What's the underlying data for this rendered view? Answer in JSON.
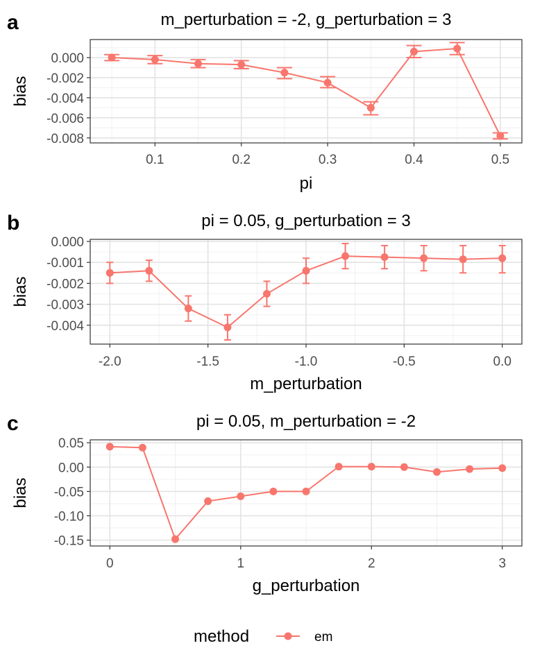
{
  "legend": {
    "title": "method",
    "entries": [
      {
        "name": "em",
        "color": "#f8766d"
      }
    ]
  },
  "chart_data": [
    {
      "type": "line",
      "panel_letter": "a",
      "title": "m_perturbation = -2, g_perturbation = 3",
      "xlabel": "pi",
      "ylabel": "bias",
      "xlim": [
        0.025,
        0.525
      ],
      "ylim": [
        -0.0085,
        0.0018
      ],
      "xticks": [
        0.1,
        0.2,
        0.3,
        0.4,
        0.5
      ],
      "xtick_labels": [
        "0.1",
        "0.2",
        "0.3",
        "0.4",
        "0.5"
      ],
      "yticks": [
        0.0,
        -0.002,
        -0.004,
        -0.006,
        -0.008
      ],
      "ytick_labels": [
        "0.000",
        "-0.002",
        "-0.004",
        "-0.006",
        "-0.008"
      ],
      "grid": true,
      "error_bars": true,
      "series": [
        {
          "name": "em",
          "color": "#f8766d",
          "x": [
            0.05,
            0.1,
            0.15,
            0.2,
            0.25,
            0.3,
            0.35,
            0.4,
            0.45,
            0.5
          ],
          "y": [
            0.0,
            -0.0002,
            -0.0006,
            -0.0007,
            -0.0015,
            -0.0025,
            -0.005,
            0.0006,
            0.0009,
            -0.0078
          ],
          "lower": [
            -0.0003,
            -0.0006,
            -0.001,
            -0.0011,
            -0.0021,
            -0.003,
            -0.0057,
            0.0,
            0.0003,
            -0.0081
          ],
          "upper": [
            0.0003,
            0.0002,
            -0.0002,
            -0.0003,
            -0.001,
            -0.0019,
            -0.0044,
            0.0012,
            0.0015,
            -0.0075
          ]
        }
      ]
    },
    {
      "type": "line",
      "panel_letter": "b",
      "title": "pi = 0.05, g_perturbation = 3",
      "xlabel": "m_perturbation",
      "ylabel": "bias",
      "xlim": [
        -2.1,
        0.1
      ],
      "ylim": [
        -0.0049,
        0.0001
      ],
      "xticks": [
        -2.0,
        -1.5,
        -1.0,
        -0.5,
        0.0
      ],
      "xtick_labels": [
        "-2.0",
        "-1.5",
        "-1.0",
        "-0.5",
        "0.0"
      ],
      "yticks": [
        0.0,
        -0.001,
        -0.002,
        -0.003,
        -0.004
      ],
      "ytick_labels": [
        "0.000",
        "-0.001",
        "-0.002",
        "-0.003",
        "-0.004"
      ],
      "grid": true,
      "error_bars": true,
      "series": [
        {
          "name": "em",
          "color": "#f8766d",
          "x": [
            -2.0,
            -1.8,
            -1.6,
            -1.4,
            -1.2,
            -1.0,
            -0.8,
            -0.6,
            -0.4,
            -0.2,
            0.0
          ],
          "y": [
            -0.0015,
            -0.0014,
            -0.0032,
            -0.0041,
            -0.0025,
            -0.0014,
            -0.0007,
            -0.00075,
            -0.0008,
            -0.00085,
            -0.0008
          ],
          "lower": [
            -0.002,
            -0.0019,
            -0.0038,
            -0.0047,
            -0.0031,
            -0.002,
            -0.0013,
            -0.0013,
            -0.0014,
            -0.0015,
            -0.0015
          ],
          "upper": [
            -0.001,
            -0.0009,
            -0.0026,
            -0.0035,
            -0.0019,
            -0.0008,
            -0.0001,
            -0.0002,
            -0.0002,
            -0.0002,
            -0.0002
          ]
        }
      ]
    },
    {
      "type": "line",
      "panel_letter": "c",
      "title": "pi = 0.05, m_perturbation = -2",
      "xlabel": "g_perturbation",
      "ylabel": "bias",
      "xlim": [
        -0.15,
        3.15
      ],
      "ylim": [
        -0.162,
        0.056
      ],
      "xticks": [
        0,
        1,
        2,
        3
      ],
      "xtick_labels": [
        "0",
        "1",
        "2",
        "3"
      ],
      "yticks": [
        0.05,
        0.0,
        -0.05,
        -0.1,
        -0.15
      ],
      "ytick_labels": [
        "0.05",
        "0.00",
        "-0.05",
        "-0.10",
        "-0.15"
      ],
      "grid": true,
      "error_bars": false,
      "series": [
        {
          "name": "em",
          "color": "#f8766d",
          "x": [
            0,
            0.25,
            0.5,
            0.75,
            1.0,
            1.25,
            1.5,
            1.75,
            2.0,
            2.25,
            2.5,
            2.75,
            3.0
          ],
          "y": [
            0.042,
            0.04,
            -0.148,
            -0.07,
            -0.06,
            -0.05,
            -0.05,
            0.001,
            0.001,
            0.0,
            -0.01,
            -0.004,
            -0.002
          ]
        }
      ]
    }
  ]
}
